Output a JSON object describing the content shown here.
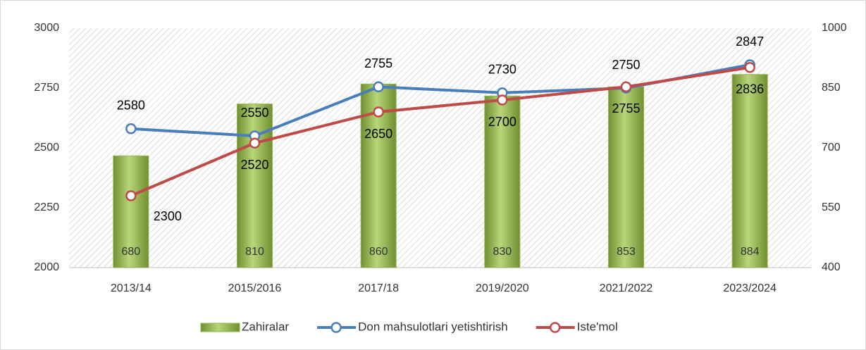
{
  "chart_data": {
    "type": "combo",
    "categories": [
      "2013/14",
      "2015/2016",
      "2017/18",
      "2019/2020",
      "2021/2022",
      "2023/2024"
    ],
    "ylim": [
      2000,
      3000
    ],
    "yticks": [
      2000,
      2250,
      2500,
      2750,
      3000
    ],
    "y2lim": [
      400,
      1000
    ],
    "y2ticks": [
      400,
      550,
      700,
      850,
      1000
    ],
    "legend": "bottom",
    "series": [
      {
        "name": "Zahiralar",
        "type": "bar",
        "axis": "y2",
        "color": "#92b550",
        "values": [
          680,
          810,
          860,
          830,
          853,
          884
        ]
      },
      {
        "name": "Don mahsulotlari yetishtirish",
        "type": "line",
        "color": "#4a7ebb",
        "values": [
          2580,
          2550,
          2755,
          2730,
          2750,
          2847
        ]
      },
      {
        "name": "Iste'mol",
        "type": "line",
        "color": "#be4b48",
        "values": [
          2300,
          2520,
          2650,
          2700,
          2755,
          2836
        ]
      }
    ]
  }
}
